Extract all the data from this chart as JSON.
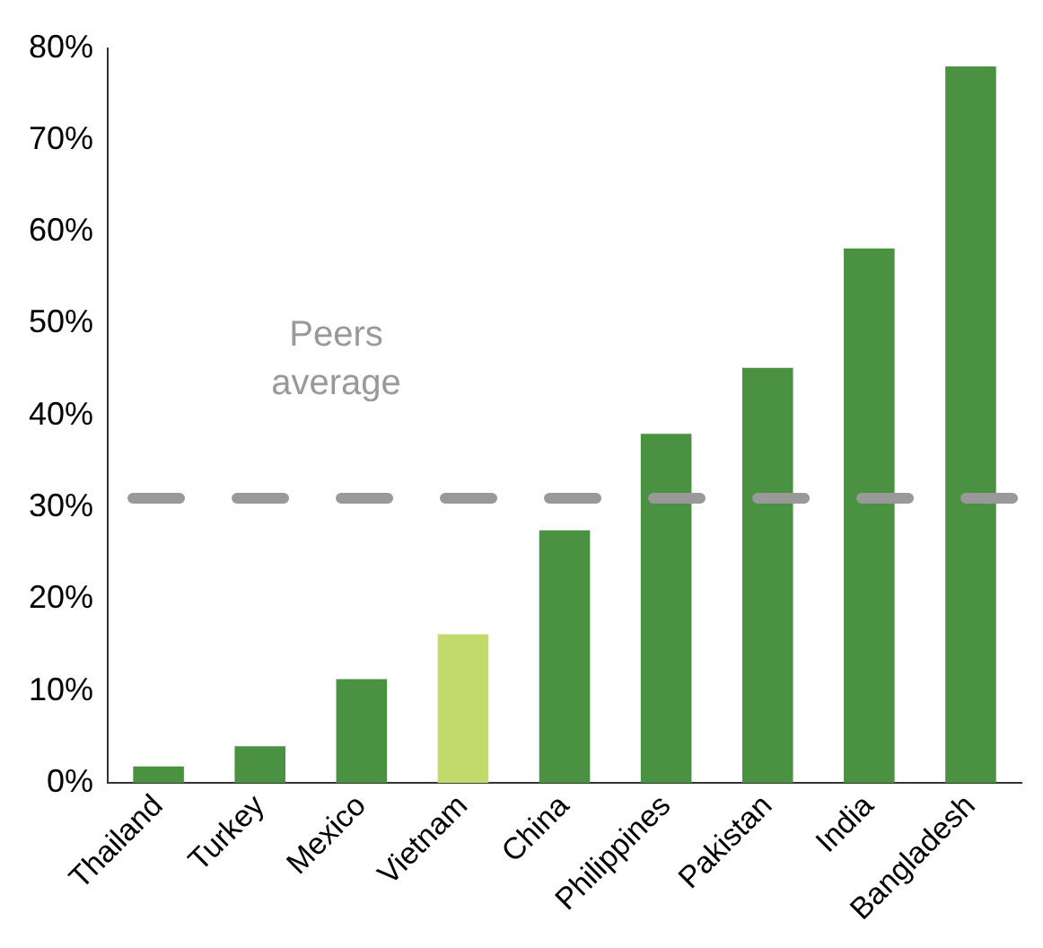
{
  "chart_data": {
    "type": "bar",
    "categories": [
      "Thailand",
      "Turkey",
      "Mexico",
      "Vietnam",
      "China",
      "Philippines",
      "Pakistan",
      "India",
      "Bangladesh"
    ],
    "values": [
      1.8,
      4,
      11.3,
      16.2,
      27.5,
      38,
      45.2,
      58.2,
      78
    ],
    "colors": [
      "#4a9142",
      "#4a9142",
      "#4a9142",
      "#c2da6b",
      "#4a9142",
      "#4a9142",
      "#4a9142",
      "#4a9142",
      "#4a9142"
    ],
    "ylim": [
      0,
      80
    ],
    "yticks": [
      {
        "value": 0,
        "label": "0%"
      },
      {
        "value": 10,
        "label": "10%"
      },
      {
        "value": 20,
        "label": "20%"
      },
      {
        "value": 30,
        "label": "30%"
      },
      {
        "value": 40,
        "label": "40%"
      },
      {
        "value": 50,
        "label": "50%"
      },
      {
        "value": 60,
        "label": "60%"
      },
      {
        "value": 70,
        "label": "70%"
      },
      {
        "value": 80,
        "label": "80%"
      }
    ],
    "grid": false,
    "legend": false,
    "ref_lines": [
      {
        "axis": "y",
        "value": 31,
        "label": "Peers average",
        "color": "#999999",
        "line_style": "dashed"
      }
    ]
  }
}
